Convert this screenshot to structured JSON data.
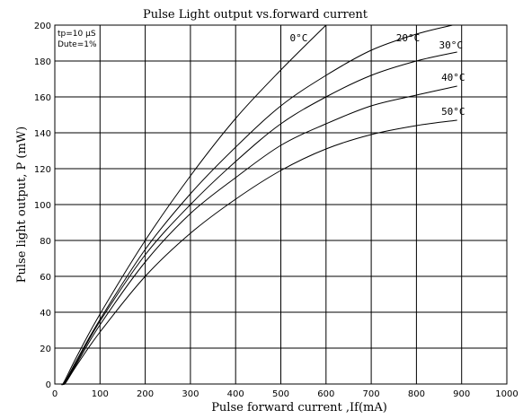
{
  "chart_data": {
    "type": "line",
    "title": "Pulse Light output vs.forward current",
    "xlabel": "Pulse forward current ,If(mA)",
    "ylabel": "Pulse light output, P (mW)",
    "xlim": [
      0,
      1000
    ],
    "ylim": [
      0,
      200
    ],
    "xticks": [
      0,
      100,
      200,
      300,
      400,
      500,
      600,
      700,
      800,
      900,
      1000
    ],
    "yticks": [
      0,
      20,
      40,
      60,
      80,
      100,
      120,
      140,
      160,
      180,
      200
    ],
    "grid": true,
    "annotations": [
      "tp=10 μS",
      "Dute=1%"
    ],
    "series": [
      {
        "name": "0°C",
        "points": [
          [
            15,
            0
          ],
          [
            20,
            1
          ],
          [
            50,
            16
          ],
          [
            100,
            39
          ],
          [
            200,
            80
          ],
          [
            300,
            116
          ],
          [
            400,
            148
          ],
          [
            500,
            175
          ],
          [
            600,
            200
          ]
        ]
      },
      {
        "name": "20°C",
        "points": [
          [
            17,
            0
          ],
          [
            22,
            1
          ],
          [
            50,
            14
          ],
          [
            100,
            36
          ],
          [
            200,
            75
          ],
          [
            300,
            106
          ],
          [
            400,
            132
          ],
          [
            500,
            155
          ],
          [
            600,
            172
          ],
          [
            700,
            186
          ],
          [
            800,
            195
          ],
          [
            880,
            200
          ]
        ]
      },
      {
        "name": "30°C",
        "points": [
          [
            18,
            0
          ],
          [
            23,
            1
          ],
          [
            50,
            13
          ],
          [
            100,
            35
          ],
          [
            200,
            72
          ],
          [
            300,
            100
          ],
          [
            400,
            124
          ],
          [
            500,
            145
          ],
          [
            600,
            160
          ],
          [
            700,
            172
          ],
          [
            800,
            180
          ],
          [
            890,
            185
          ]
        ]
      },
      {
        "name": "40°C",
        "points": [
          [
            19,
            0
          ],
          [
            24,
            1
          ],
          [
            50,
            12
          ],
          [
            100,
            33
          ],
          [
            200,
            68
          ],
          [
            300,
            95
          ],
          [
            400,
            115
          ],
          [
            500,
            133
          ],
          [
            600,
            145
          ],
          [
            700,
            155
          ],
          [
            800,
            161
          ],
          [
            890,
            166
          ]
        ]
      },
      {
        "name": "50°C",
        "points": [
          [
            20,
            0
          ],
          [
            25,
            1
          ],
          [
            50,
            11
          ],
          [
            100,
            29
          ],
          [
            200,
            60
          ],
          [
            300,
            84
          ],
          [
            400,
            103
          ],
          [
            500,
            119
          ],
          [
            600,
            131
          ],
          [
            700,
            139
          ],
          [
            800,
            144
          ],
          [
            890,
            147
          ]
        ]
      }
    ],
    "series_label_positions": [
      {
        "x": 520,
        "y": 193
      },
      {
        "x": 755,
        "y": 193
      },
      {
        "x": 850,
        "y": 189
      },
      {
        "x": 855,
        "y": 171
      },
      {
        "x": 855,
        "y": 152
      }
    ]
  }
}
